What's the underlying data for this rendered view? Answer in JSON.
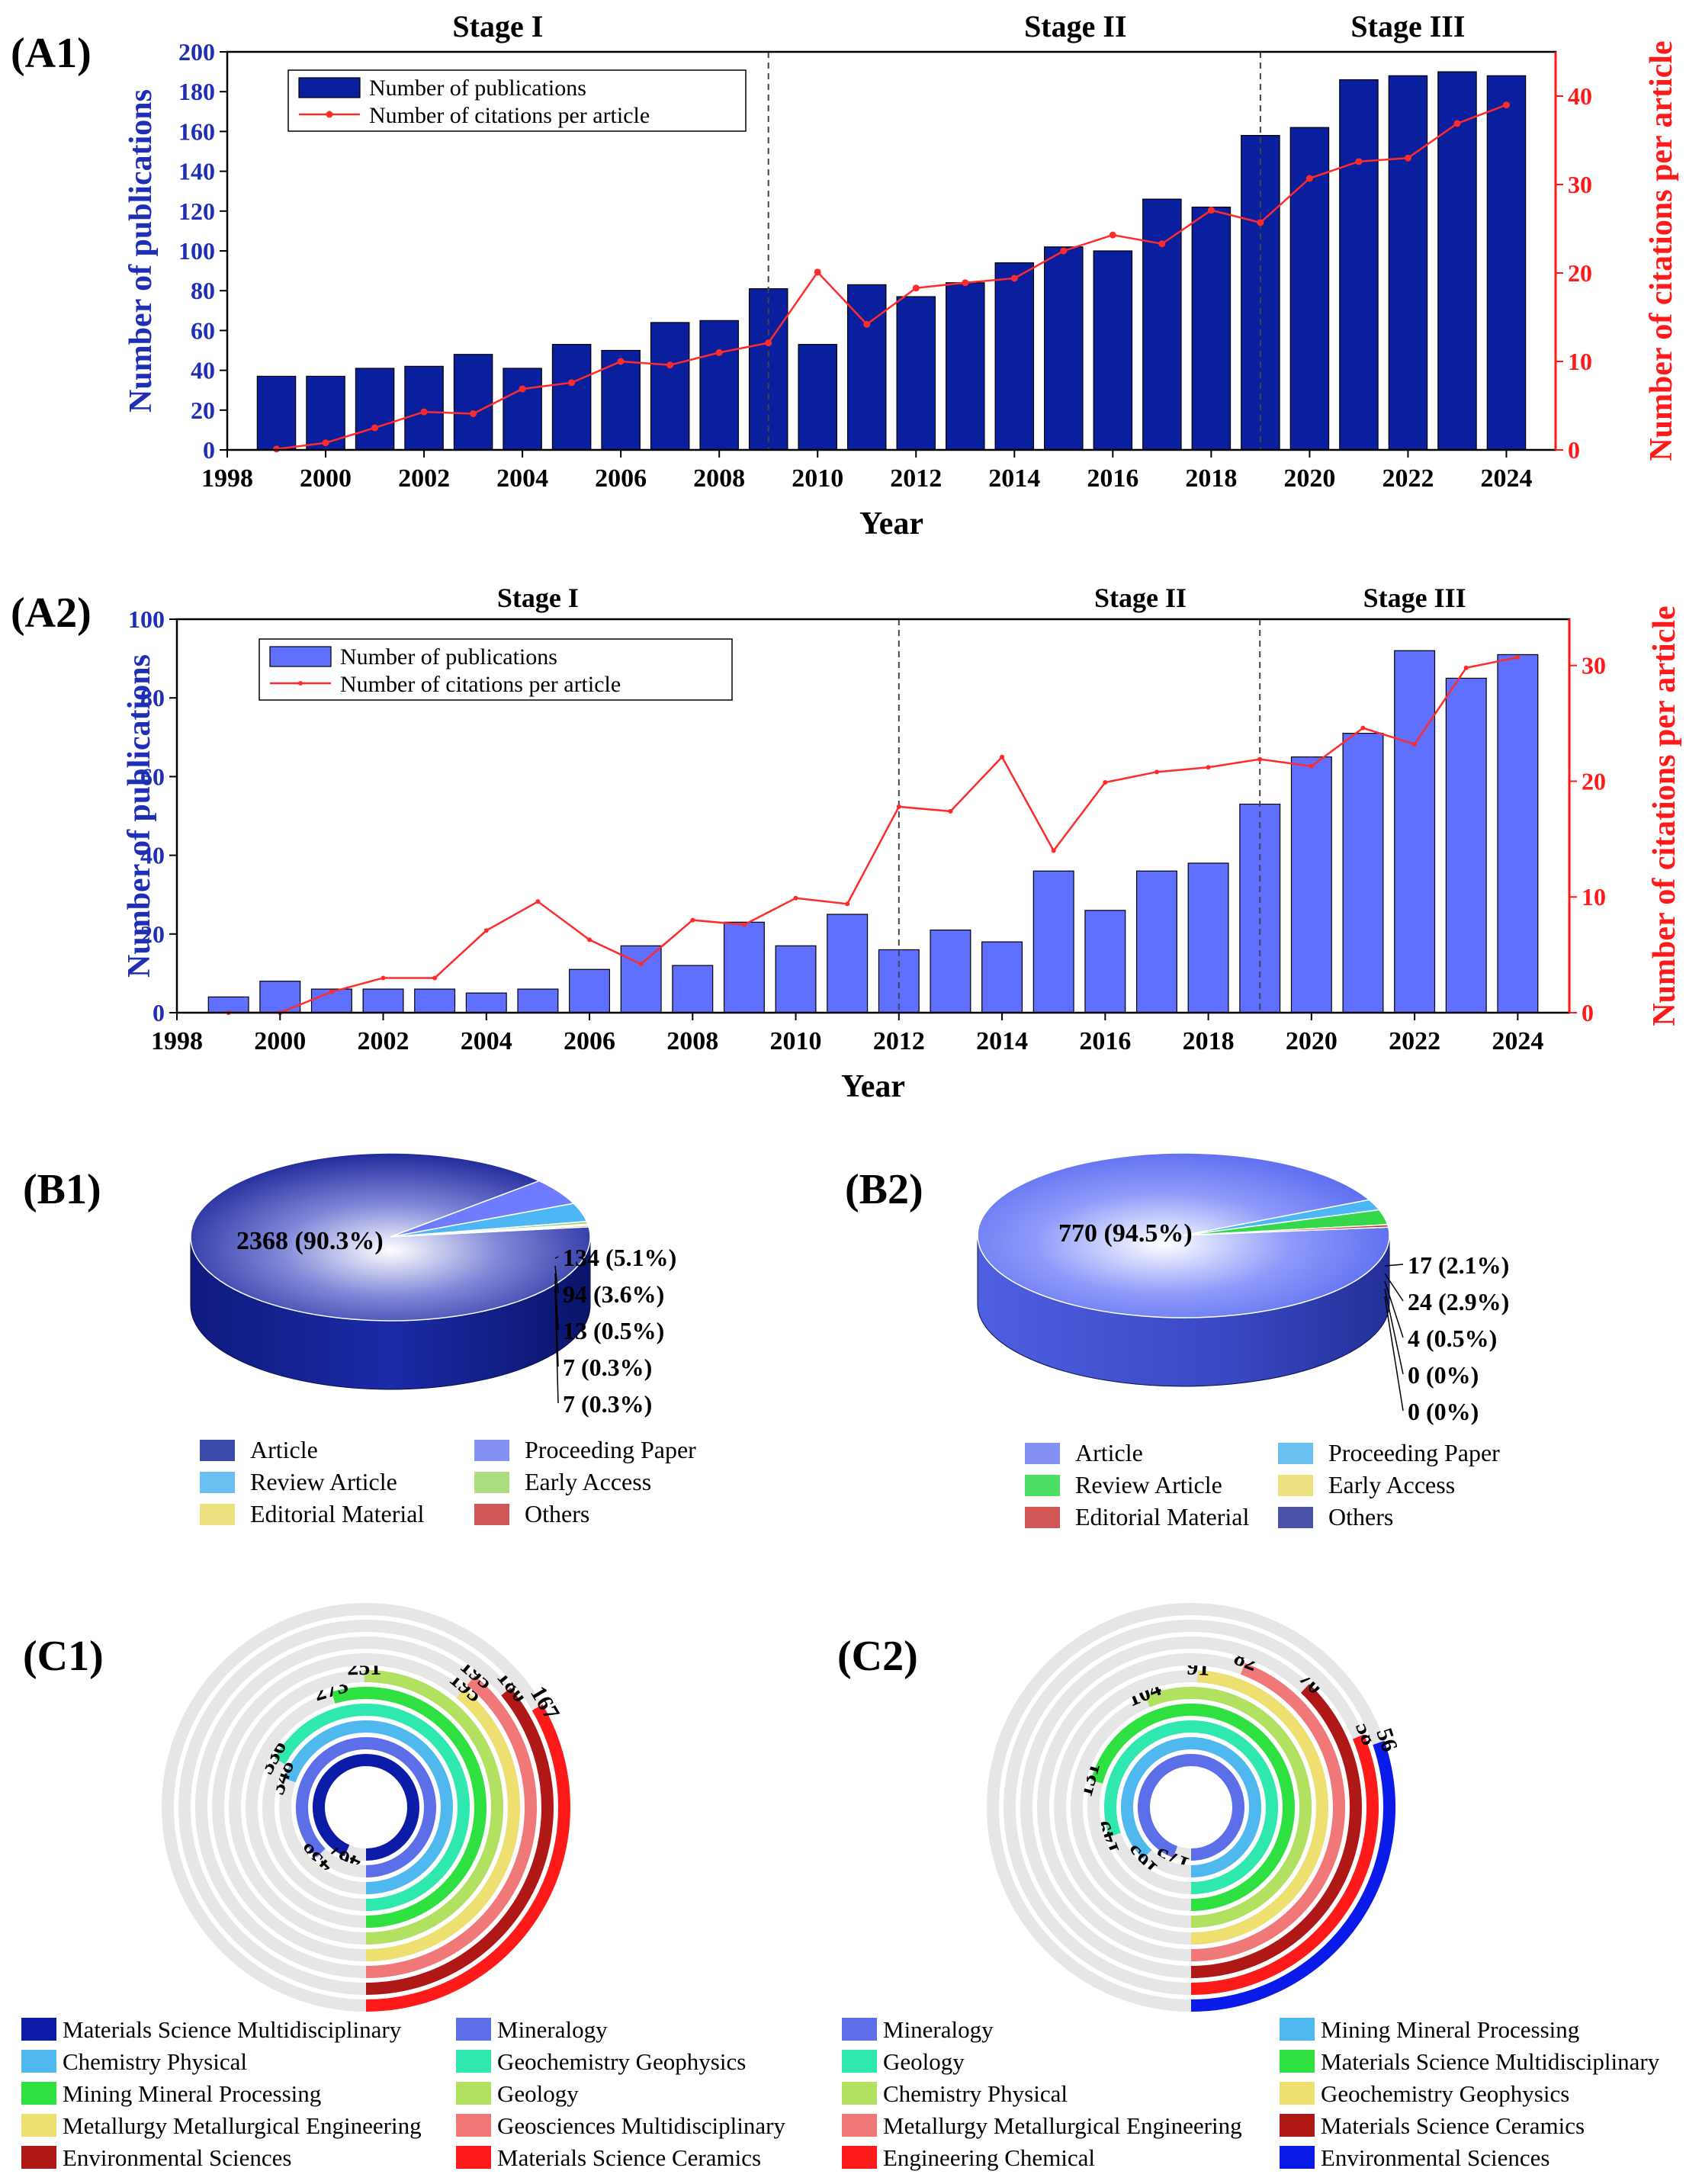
{
  "colors": {
    "a1_bar": "#0a1f9e",
    "a2_bar": "#5f6fff",
    "line": "#ff2b2b",
    "left_axis": "#1f2fb5",
    "right_axis": "#ff1a1a",
    "track": "#e6e6e6"
  },
  "chart_data": [
    {
      "id": "A1",
      "type": "bar+line",
      "panel_label": "(A1)",
      "stages": [
        "Stage I",
        "Stage II",
        "Stage III"
      ],
      "stage_boundaries": [
        2009,
        2019
      ],
      "xlabel": "Year",
      "ylabel_left": "Number of  publications",
      "ylabel_right": "Number of citations per article",
      "x_ticks": [
        1998,
        2000,
        2002,
        2004,
        2006,
        2008,
        2010,
        2012,
        2014,
        2016,
        2018,
        2020,
        2022,
        2024
      ],
      "xlim": [
        1998,
        2025
      ],
      "ylim_left": [
        0,
        200
      ],
      "ylim_right": [
        0,
        45
      ],
      "y_ticks_left": [
        0,
        20,
        40,
        60,
        80,
        100,
        120,
        140,
        160,
        180,
        200
      ],
      "y_ticks_right": [
        0,
        10,
        20,
        30,
        40
      ],
      "years": [
        1999,
        2000,
        2001,
        2002,
        2003,
        2004,
        2005,
        2006,
        2007,
        2008,
        2009,
        2010,
        2011,
        2012,
        2013,
        2014,
        2015,
        2016,
        2017,
        2018,
        2019,
        2020,
        2021,
        2022,
        2023,
        2024
      ],
      "series": [
        {
          "name": "Number of  publications",
          "kind": "bar",
          "axis": "left",
          "values": [
            37,
            37,
            41,
            42,
            48,
            41,
            53,
            50,
            64,
            65,
            81,
            53,
            83,
            77,
            84,
            94,
            102,
            100,
            126,
            122,
            158,
            162,
            186,
            188,
            190,
            188
          ]
        },
        {
          "name": "Number of citations per article",
          "kind": "line",
          "axis": "right",
          "values": [
            0.1,
            0.8,
            2.5,
            4.3,
            4.1,
            6.9,
            7.6,
            10.0,
            9.6,
            11.0,
            12.1,
            20.1,
            14.2,
            18.3,
            18.9,
            19.4,
            22.5,
            24.3,
            23.3,
            27.1,
            25.7,
            30.7,
            32.6,
            33.0,
            36.9,
            39.0
          ]
        }
      ]
    },
    {
      "id": "A2",
      "type": "bar+line",
      "panel_label": "(A2)",
      "stages": [
        "Stage I",
        "Stage II",
        "Stage III"
      ],
      "stage_boundaries": [
        2012,
        2019
      ],
      "xlabel": "Year",
      "ylabel_left": "Number of publications",
      "ylabel_right": "Number of citations per article",
      "x_ticks": [
        1998,
        2000,
        2002,
        2004,
        2006,
        2008,
        2010,
        2012,
        2014,
        2016,
        2018,
        2020,
        2022,
        2024
      ],
      "xlim": [
        1998,
        2025
      ],
      "ylim_left": [
        0,
        100
      ],
      "ylim_right": [
        0,
        34
      ],
      "y_ticks_left": [
        0,
        20,
        40,
        60,
        80,
        100
      ],
      "y_ticks_right": [
        0,
        10,
        20,
        30
      ],
      "years": [
        1999,
        2000,
        2001,
        2002,
        2003,
        2004,
        2005,
        2006,
        2007,
        2008,
        2009,
        2010,
        2011,
        2012,
        2013,
        2014,
        2015,
        2016,
        2017,
        2018,
        2019,
        2020,
        2021,
        2022,
        2023,
        2024
      ],
      "series": [
        {
          "name": "Number of publications",
          "kind": "bar",
          "axis": "left",
          "values": [
            4,
            8,
            6,
            6,
            6,
            5,
            6,
            11,
            17,
            12,
            23,
            17,
            25,
            16,
            21,
            18,
            36,
            26,
            36,
            38,
            53,
            65,
            71,
            92,
            85,
            91
          ]
        },
        {
          "name": "Number of citations per article",
          "kind": "line",
          "axis": "right",
          "values": [
            0,
            0,
            1.8,
            3.0,
            3.0,
            7.1,
            9.6,
            6.3,
            4.2,
            8.0,
            7.6,
            9.9,
            9.4,
            17.8,
            17.4,
            22.1,
            14.0,
            19.9,
            20.8,
            21.2,
            21.9,
            21.3,
            24.6,
            23.2,
            29.8,
            30.7
          ]
        }
      ]
    },
    {
      "id": "B1",
      "type": "pie",
      "panel_label": "(B1)",
      "labels": [
        "2368 (90.3%)",
        "134 (5.1%)",
        "94 (3.6%)",
        "13 (0.5%)",
        "7 (0.3%)",
        "7 (0.3%)"
      ],
      "values": [
        2368,
        134,
        94,
        13,
        7,
        7
      ],
      "slice_colors": [
        "#142a9c",
        "#6f7cff",
        "#4db6f5",
        "#9bd86a",
        "#e9dc6a",
        "#c93a3a"
      ],
      "legend": [
        "Article",
        "Proceeding Paper",
        "Review Article",
        "Early Access",
        "Editorial Material",
        "Others"
      ],
      "legend_colors": [
        "#1a2a9a",
        "#6f7cf0",
        "#4fb6f0",
        "#9bd86a",
        "#e9dc6a",
        "#c93a3a"
      ]
    },
    {
      "id": "B2",
      "type": "pie",
      "panel_label": "(B2)",
      "labels": [
        "770 (94.5%)",
        "17 (2.1%)",
        "24 (2.9%)",
        "4 (0.5%)",
        "0 (0%)",
        "0 (0%)"
      ],
      "values": [
        770,
        17,
        24,
        4,
        0,
        0
      ],
      "slice_colors": [
        "#5b6cf2",
        "#4db6f5",
        "#35d84a",
        "#c93a3a",
        "#e9dc6a",
        "#25309a"
      ],
      "legend": [
        "Article",
        "Proceeding Paper",
        "Review Article",
        "Early Access",
        "Editorial Material",
        "Others"
      ],
      "legend_colors": [
        "#6f7cf0",
        "#4fb6f0",
        "#2ed84a",
        "#e9dc6a",
        "#c93a3a",
        "#2a3498"
      ]
    },
    {
      "id": "C1",
      "type": "radial_bar",
      "panel_label": "(C1)",
      "categories": [
        "Materials Science Multidisciplinary",
        "Mineralogy",
        "Chemistry Physical",
        "Geochemistry Geophysics",
        "Mining Mineral Processing",
        "Geology",
        "Metallurgy Metallurgical Engineering",
        "Geosciences Multidisciplinary",
        "Environmental Sciences",
        "Materials Science Ceramics"
      ],
      "values": [
        467,
        438,
        348,
        336,
        273,
        251,
        195,
        195,
        180,
        167
      ],
      "max_value": 500,
      "ring_colors": [
        "#0d1ca8",
        "#5d6fe8",
        "#4fb8ef",
        "#2ee8b0",
        "#2ee040",
        "#b2e060",
        "#ede070",
        "#f07878",
        "#b01818",
        "#ff1a1a"
      ]
    },
    {
      "id": "C2",
      "type": "radial_bar",
      "panel_label": "(C2)",
      "categories": [
        "Mineralogy",
        "Mining Mineral Processing",
        "Geology",
        "Materials Science Multidisciplinary",
        "Chemistry Physical",
        "Geochemistry Geophysics",
        "Metallurgy Metallurgical Engineering",
        "Materials Science Ceramics",
        "Engineering Chemical",
        "Environmental Sciences"
      ],
      "values": [
        175,
        163,
        149,
        131,
        104,
        91,
        82,
        70,
        58,
        56
      ],
      "max_value": 185,
      "ring_colors": [
        "#5d6fe8",
        "#4fb8ef",
        "#2ee8b0",
        "#2ee040",
        "#b2e060",
        "#ede070",
        "#f07878",
        "#b01818",
        "#ff1a1a",
        "#0a1ae8"
      ]
    }
  ]
}
